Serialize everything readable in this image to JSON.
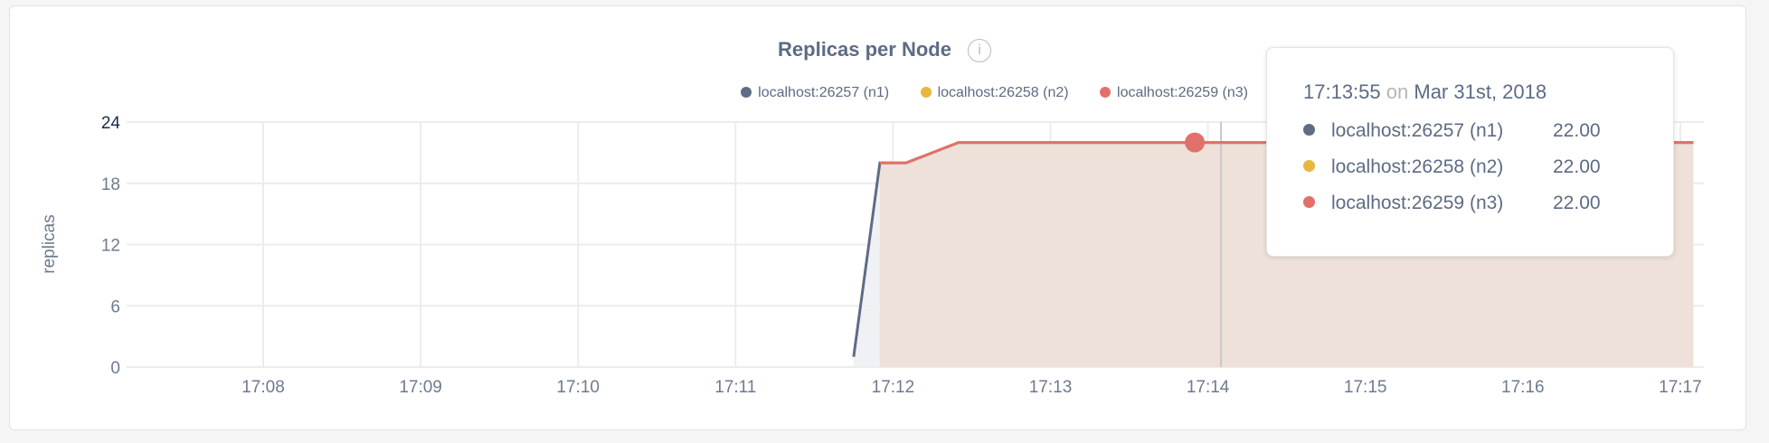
{
  "chart_data": {
    "type": "area",
    "title": "Replicas per Node",
    "ylabel": "replicas",
    "xlabel": "",
    "ylim": [
      0,
      24
    ],
    "yticks": [
      "0",
      "6",
      "12",
      "18",
      "24"
    ],
    "xticks": [
      "17:08",
      "17:09",
      "17:10",
      "17:11",
      "17:12",
      "17:13",
      "17:14",
      "17:15",
      "17:16",
      "17:17"
    ],
    "xlim": [
      "17:07:00",
      "17:17:10"
    ],
    "grid": true,
    "legend_position": "top-right",
    "series": [
      {
        "name": "localhost:26257 (n1)",
        "color": "#5f6c87",
        "fill": "#eef0f4",
        "x": [
          "17:11:45",
          "17:11:55",
          "17:12:05",
          "17:12:25",
          "17:13:55",
          "17:17:05"
        ],
        "y": [
          1,
          20,
          20,
          22,
          22,
          22
        ]
      },
      {
        "name": "localhost:26258 (n2)",
        "color": "#e8b740",
        "fill": "#f4eddc",
        "x": [
          "17:11:55",
          "17:12:05",
          "17:12:25",
          "17:13:55",
          "17:17:05"
        ],
        "y": [
          20,
          20,
          22,
          22,
          22
        ]
      },
      {
        "name": "localhost:26259 (n3)",
        "color": "#e2706a",
        "fill": "#ecdfd8",
        "x": [
          "17:11:55",
          "17:12:05",
          "17:12:25",
          "17:13:55",
          "17:17:05"
        ],
        "y": [
          20,
          20,
          22,
          22,
          22
        ]
      }
    ]
  },
  "tooltip": {
    "time": "17:13:55",
    "on": "on",
    "date": "Mar 31st, 2018",
    "rows": [
      {
        "label": "localhost:26257 (n1)",
        "value": "22.00",
        "color": "#5f6c87"
      },
      {
        "label": "localhost:26258 (n2)",
        "value": "22.00",
        "color": "#e8b740"
      },
      {
        "label": "localhost:26259 (n3)",
        "value": "22.00",
        "color": "#e2706a"
      }
    ]
  },
  "info_icon": "info-icon"
}
